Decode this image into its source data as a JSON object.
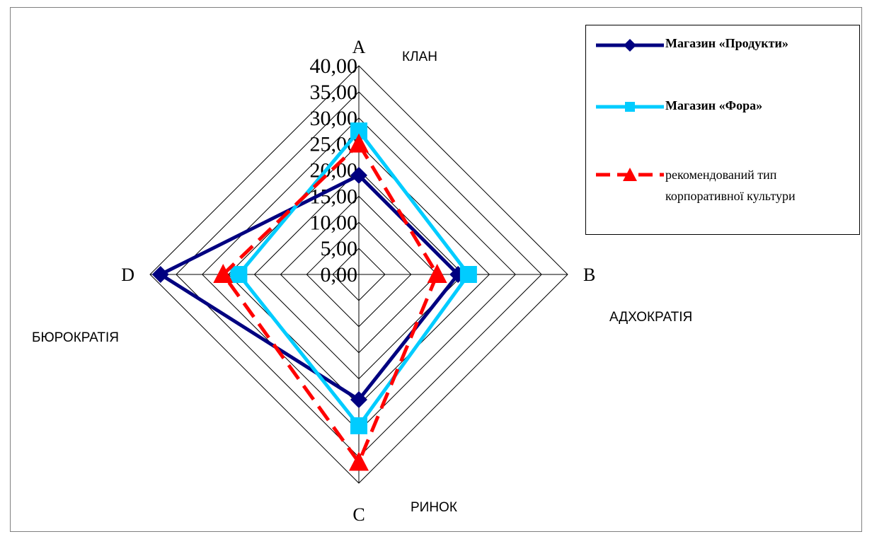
{
  "chart_data": {
    "type": "radar",
    "axes": [
      {
        "letter": "A",
        "name": "КЛАН"
      },
      {
        "letter": "B",
        "name": "АДХОКРАТІЯ"
      },
      {
        "letter": "C",
        "name": "РИНОК"
      },
      {
        "letter": "D",
        "name": "БЮРОКРАТІЯ"
      }
    ],
    "tick_labels": [
      "0,00",
      "5,00",
      "10,00",
      "15,00",
      "20,00",
      "25,00",
      "30,00",
      "35,00",
      "40,00"
    ],
    "ticks": [
      0,
      5,
      10,
      15,
      20,
      25,
      30,
      35,
      40
    ],
    "range": [
      0,
      40
    ],
    "grid": true,
    "legend_position": "top-right",
    "series": [
      {
        "name": "Магазин «Продукти»",
        "values": [
          19,
          19,
          24,
          38
        ],
        "color": "#000080",
        "marker": "diamond",
        "line": "solid"
      },
      {
        "name": "Магазин «Фора»",
        "values": [
          27.5,
          21,
          29,
          23
        ],
        "color": "#00CCFF",
        "marker": "square",
        "line": "solid"
      },
      {
        "name": "рекомендований тип корпоративної культури",
        "values": [
          25,
          15,
          36,
          26
        ],
        "color": "#FF0000",
        "marker": "triangle",
        "line": "dashed"
      }
    ]
  }
}
